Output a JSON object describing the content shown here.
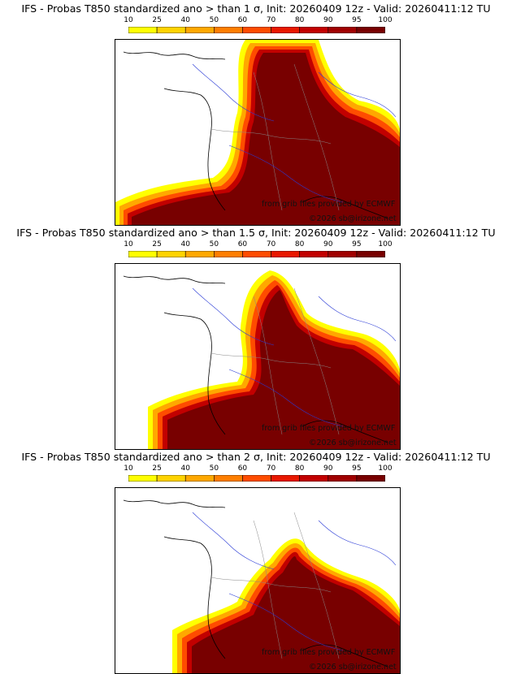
{
  "panels": [
    {
      "title": "IFS - Probas T850  standardized ano > than 1 σ, Init: 20260409 12z - Valid: 20260411:12 TU",
      "threshold_sigma": 1
    },
    {
      "title": "IFS - Probas T850  standardized ano > than 1.5 σ, Init: 20260409 12z - Valid: 20260411:12 TU",
      "threshold_sigma": 1.5
    },
    {
      "title": "IFS - Probas T850  standardized ano > than 2 σ, Init: 20260409 12z - Valid: 20260411:12 TU",
      "threshold_sigma": 2
    }
  ],
  "colorbar": {
    "ticks": [
      "10",
      "25",
      "40",
      "50",
      "60",
      "70",
      "80",
      "90",
      "95",
      "100"
    ],
    "colors": [
      "#ffff00",
      "#ffd300",
      "#ffa800",
      "#ff7e00",
      "#ff4c00",
      "#e81800",
      "#c20000",
      "#a00000",
      "#780000"
    ]
  },
  "credits": {
    "source": "from grib files provided by ECMWF",
    "copyright": "©2026 sb@irizone.net"
  }
}
